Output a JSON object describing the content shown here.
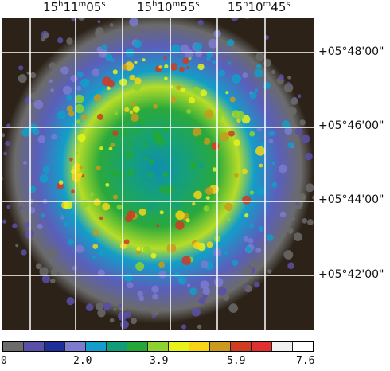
{
  "ra_labels": [
    {
      "h": "15",
      "hu": "h",
      "m": "11",
      "mu": "m",
      "s": "05",
      "su": "s"
    },
    {
      "h": "15",
      "hu": "h",
      "m": "10",
      "mu": "m",
      "s": "55",
      "su": "s"
    },
    {
      "h": "15",
      "hu": "h",
      "m": "10",
      "mu": "m",
      "s": "45",
      "su": "s"
    }
  ],
  "dec_labels": [
    "+05°48'00\"",
    "+05°46'00\"",
    "+05°44'00\"",
    "+05°42'00\""
  ],
  "colorbar": {
    "ticks": [
      "0",
      "2.0",
      "3.9",
      "5.9",
      "7.6"
    ],
    "colors": [
      "#6b6b6b",
      "#5a4fa8",
      "#1f2f9a",
      "#7b7bd0",
      "#129ec9",
      "#0f9e78",
      "#22a83a",
      "#8ed22f",
      "#e6f21a",
      "#f5d515",
      "#c99a1b",
      "#d03b22",
      "#e23030",
      "#f0f0f0",
      "#ffffff"
    ]
  }
}
